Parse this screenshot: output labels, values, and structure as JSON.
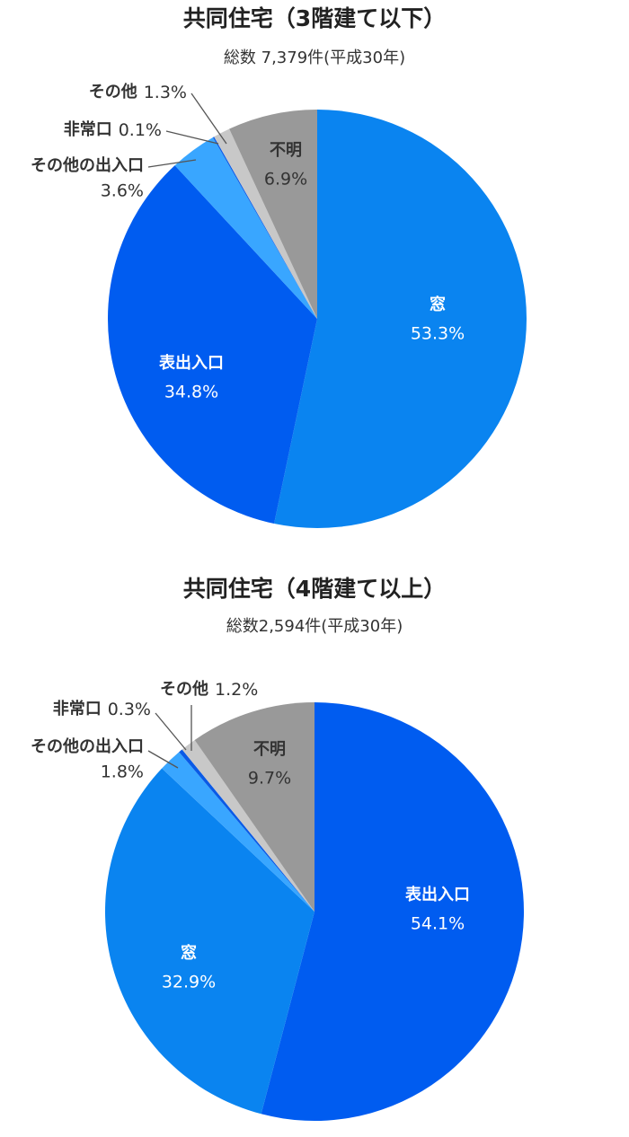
{
  "chart_data": [
    {
      "type": "pie",
      "title": "共同住宅（3階建て以下）",
      "subtitle": "総数 7,379件(平成30年)",
      "categories": [
        "窓",
        "表出入口",
        "その他の出入口",
        "非常口",
        "その他",
        "不明"
      ],
      "values": [
        53.3,
        34.8,
        3.6,
        0.1,
        1.3,
        6.9
      ],
      "value_labels": [
        "53.3%",
        "34.8%",
        "3.6%",
        "0.1%",
        "1.3%",
        "6.9%"
      ],
      "colors": [
        "#0a84f0",
        "#005cf0",
        "#39a6ff",
        "#0a5ae6",
        "#c8c8c8",
        "#999999"
      ]
    },
    {
      "type": "pie",
      "title": "共同住宅（4階建て以上）",
      "subtitle": "総数2,594件(平成30年)",
      "categories": [
        "表出入口",
        "窓",
        "その他の出入口",
        "非常口",
        "その他",
        "不明"
      ],
      "values": [
        54.1,
        32.9,
        1.8,
        0.3,
        1.2,
        9.7
      ],
      "value_labels": [
        "54.1%",
        "32.9%",
        "1.8%",
        "0.3%",
        "1.2%",
        "9.7%"
      ],
      "colors": [
        "#005cf0",
        "#0a84f0",
        "#39a6ff",
        "#0a5ae6",
        "#c8c8c8",
        "#999999"
      ]
    }
  ]
}
